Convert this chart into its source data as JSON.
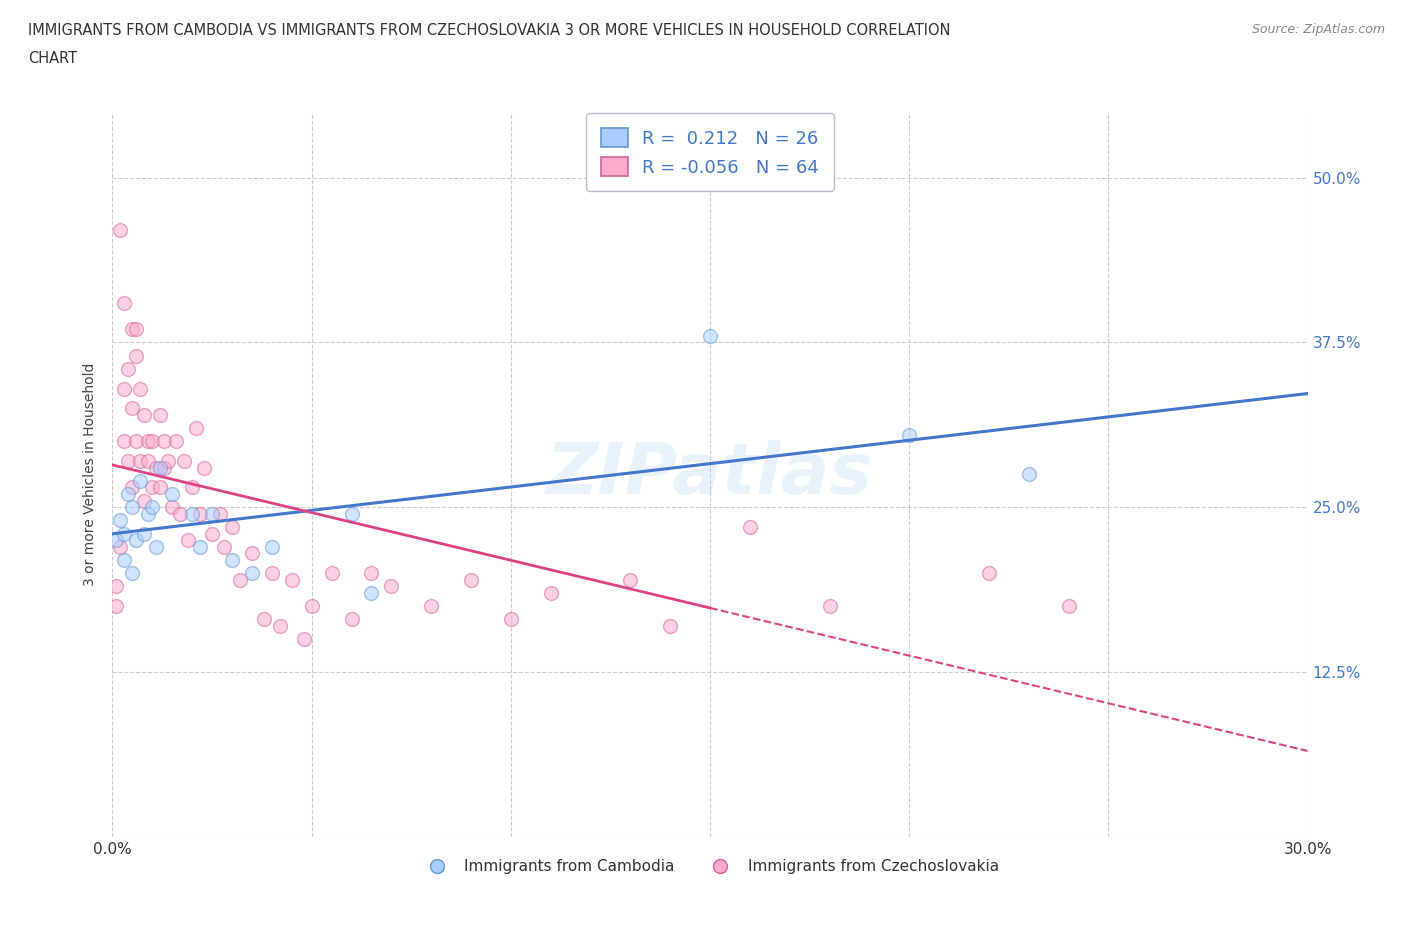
{
  "title_line1": "IMMIGRANTS FROM CAMBODIA VS IMMIGRANTS FROM CZECHOSLOVAKIA 3 OR MORE VEHICLES IN HOUSEHOLD CORRELATION",
  "title_line2": "CHART",
  "source_text": "Source: ZipAtlas.com",
  "ylabel": "3 or more Vehicles in Household",
  "xlim": [
    0.0,
    0.3
  ],
  "ylim": [
    0.0,
    0.55
  ],
  "xticks": [
    0.0,
    0.05,
    0.1,
    0.15,
    0.2,
    0.25,
    0.3
  ],
  "xticklabels": [
    "0.0%",
    "",
    "",
    "",
    "",
    "",
    "30.0%"
  ],
  "yticks": [
    0.0,
    0.125,
    0.25,
    0.375,
    0.5
  ],
  "right_yticklabels": [
    "",
    "12.5%",
    "25.0%",
    "37.5%",
    "50.0%"
  ],
  "grid_color": "#cccccc",
  "background_color": "#ffffff",
  "watermark": "ZIPatlas",
  "cambodia_color": "#aaccff",
  "cambodia_edge": "#6699cc",
  "czechoslovakia_color": "#ffaacc",
  "czechoslovakia_edge": "#cc6699",
  "R_cambodia": 0.212,
  "N_cambodia": 26,
  "R_czechoslovakia": -0.056,
  "N_czechoslovakia": 64,
  "trend_cambodia_color": "#4477cc",
  "trend_czechoslovakia_color": "#dd4488",
  "trend_czechoslovakia_solid_end": 0.15,
  "legend_text_color": "#4477cc",
  "right_ytick_color": "#4477cc",
  "cambodia_x": [
    0.001,
    0.002,
    0.003,
    0.003,
    0.004,
    0.005,
    0.005,
    0.006,
    0.007,
    0.008,
    0.009,
    0.01,
    0.011,
    0.012,
    0.015,
    0.02,
    0.022,
    0.025,
    0.03,
    0.035,
    0.04,
    0.06,
    0.065,
    0.15,
    0.2,
    0.23
  ],
  "cambodia_y": [
    0.225,
    0.24,
    0.21,
    0.23,
    0.26,
    0.2,
    0.25,
    0.225,
    0.27,
    0.23,
    0.245,
    0.25,
    0.22,
    0.28,
    0.26,
    0.245,
    0.22,
    0.245,
    0.21,
    0.2,
    0.22,
    0.245,
    0.185,
    0.38,
    0.305,
    0.275
  ],
  "czechoslovakia_x": [
    0.001,
    0.001,
    0.002,
    0.002,
    0.003,
    0.003,
    0.003,
    0.004,
    0.004,
    0.005,
    0.005,
    0.005,
    0.006,
    0.006,
    0.006,
    0.007,
    0.007,
    0.008,
    0.008,
    0.009,
    0.009,
    0.01,
    0.01,
    0.011,
    0.012,
    0.012,
    0.013,
    0.013,
    0.014,
    0.015,
    0.016,
    0.017,
    0.018,
    0.019,
    0.02,
    0.021,
    0.022,
    0.023,
    0.025,
    0.027,
    0.028,
    0.03,
    0.032,
    0.035,
    0.038,
    0.04,
    0.042,
    0.045,
    0.048,
    0.05,
    0.055,
    0.06,
    0.065,
    0.07,
    0.08,
    0.09,
    0.1,
    0.11,
    0.13,
    0.14,
    0.16,
    0.18,
    0.22,
    0.24
  ],
  "czechoslovakia_y": [
    0.175,
    0.19,
    0.22,
    0.46,
    0.405,
    0.3,
    0.34,
    0.285,
    0.355,
    0.325,
    0.385,
    0.265,
    0.3,
    0.365,
    0.385,
    0.34,
    0.285,
    0.32,
    0.255,
    0.3,
    0.285,
    0.265,
    0.3,
    0.28,
    0.32,
    0.265,
    0.3,
    0.28,
    0.285,
    0.25,
    0.3,
    0.245,
    0.285,
    0.225,
    0.265,
    0.31,
    0.245,
    0.28,
    0.23,
    0.245,
    0.22,
    0.235,
    0.195,
    0.215,
    0.165,
    0.2,
    0.16,
    0.195,
    0.15,
    0.175,
    0.2,
    0.165,
    0.2,
    0.19,
    0.175,
    0.195,
    0.165,
    0.185,
    0.195,
    0.16,
    0.235,
    0.175,
    0.2,
    0.175
  ],
  "marker_size": 100,
  "marker_alpha": 0.55
}
